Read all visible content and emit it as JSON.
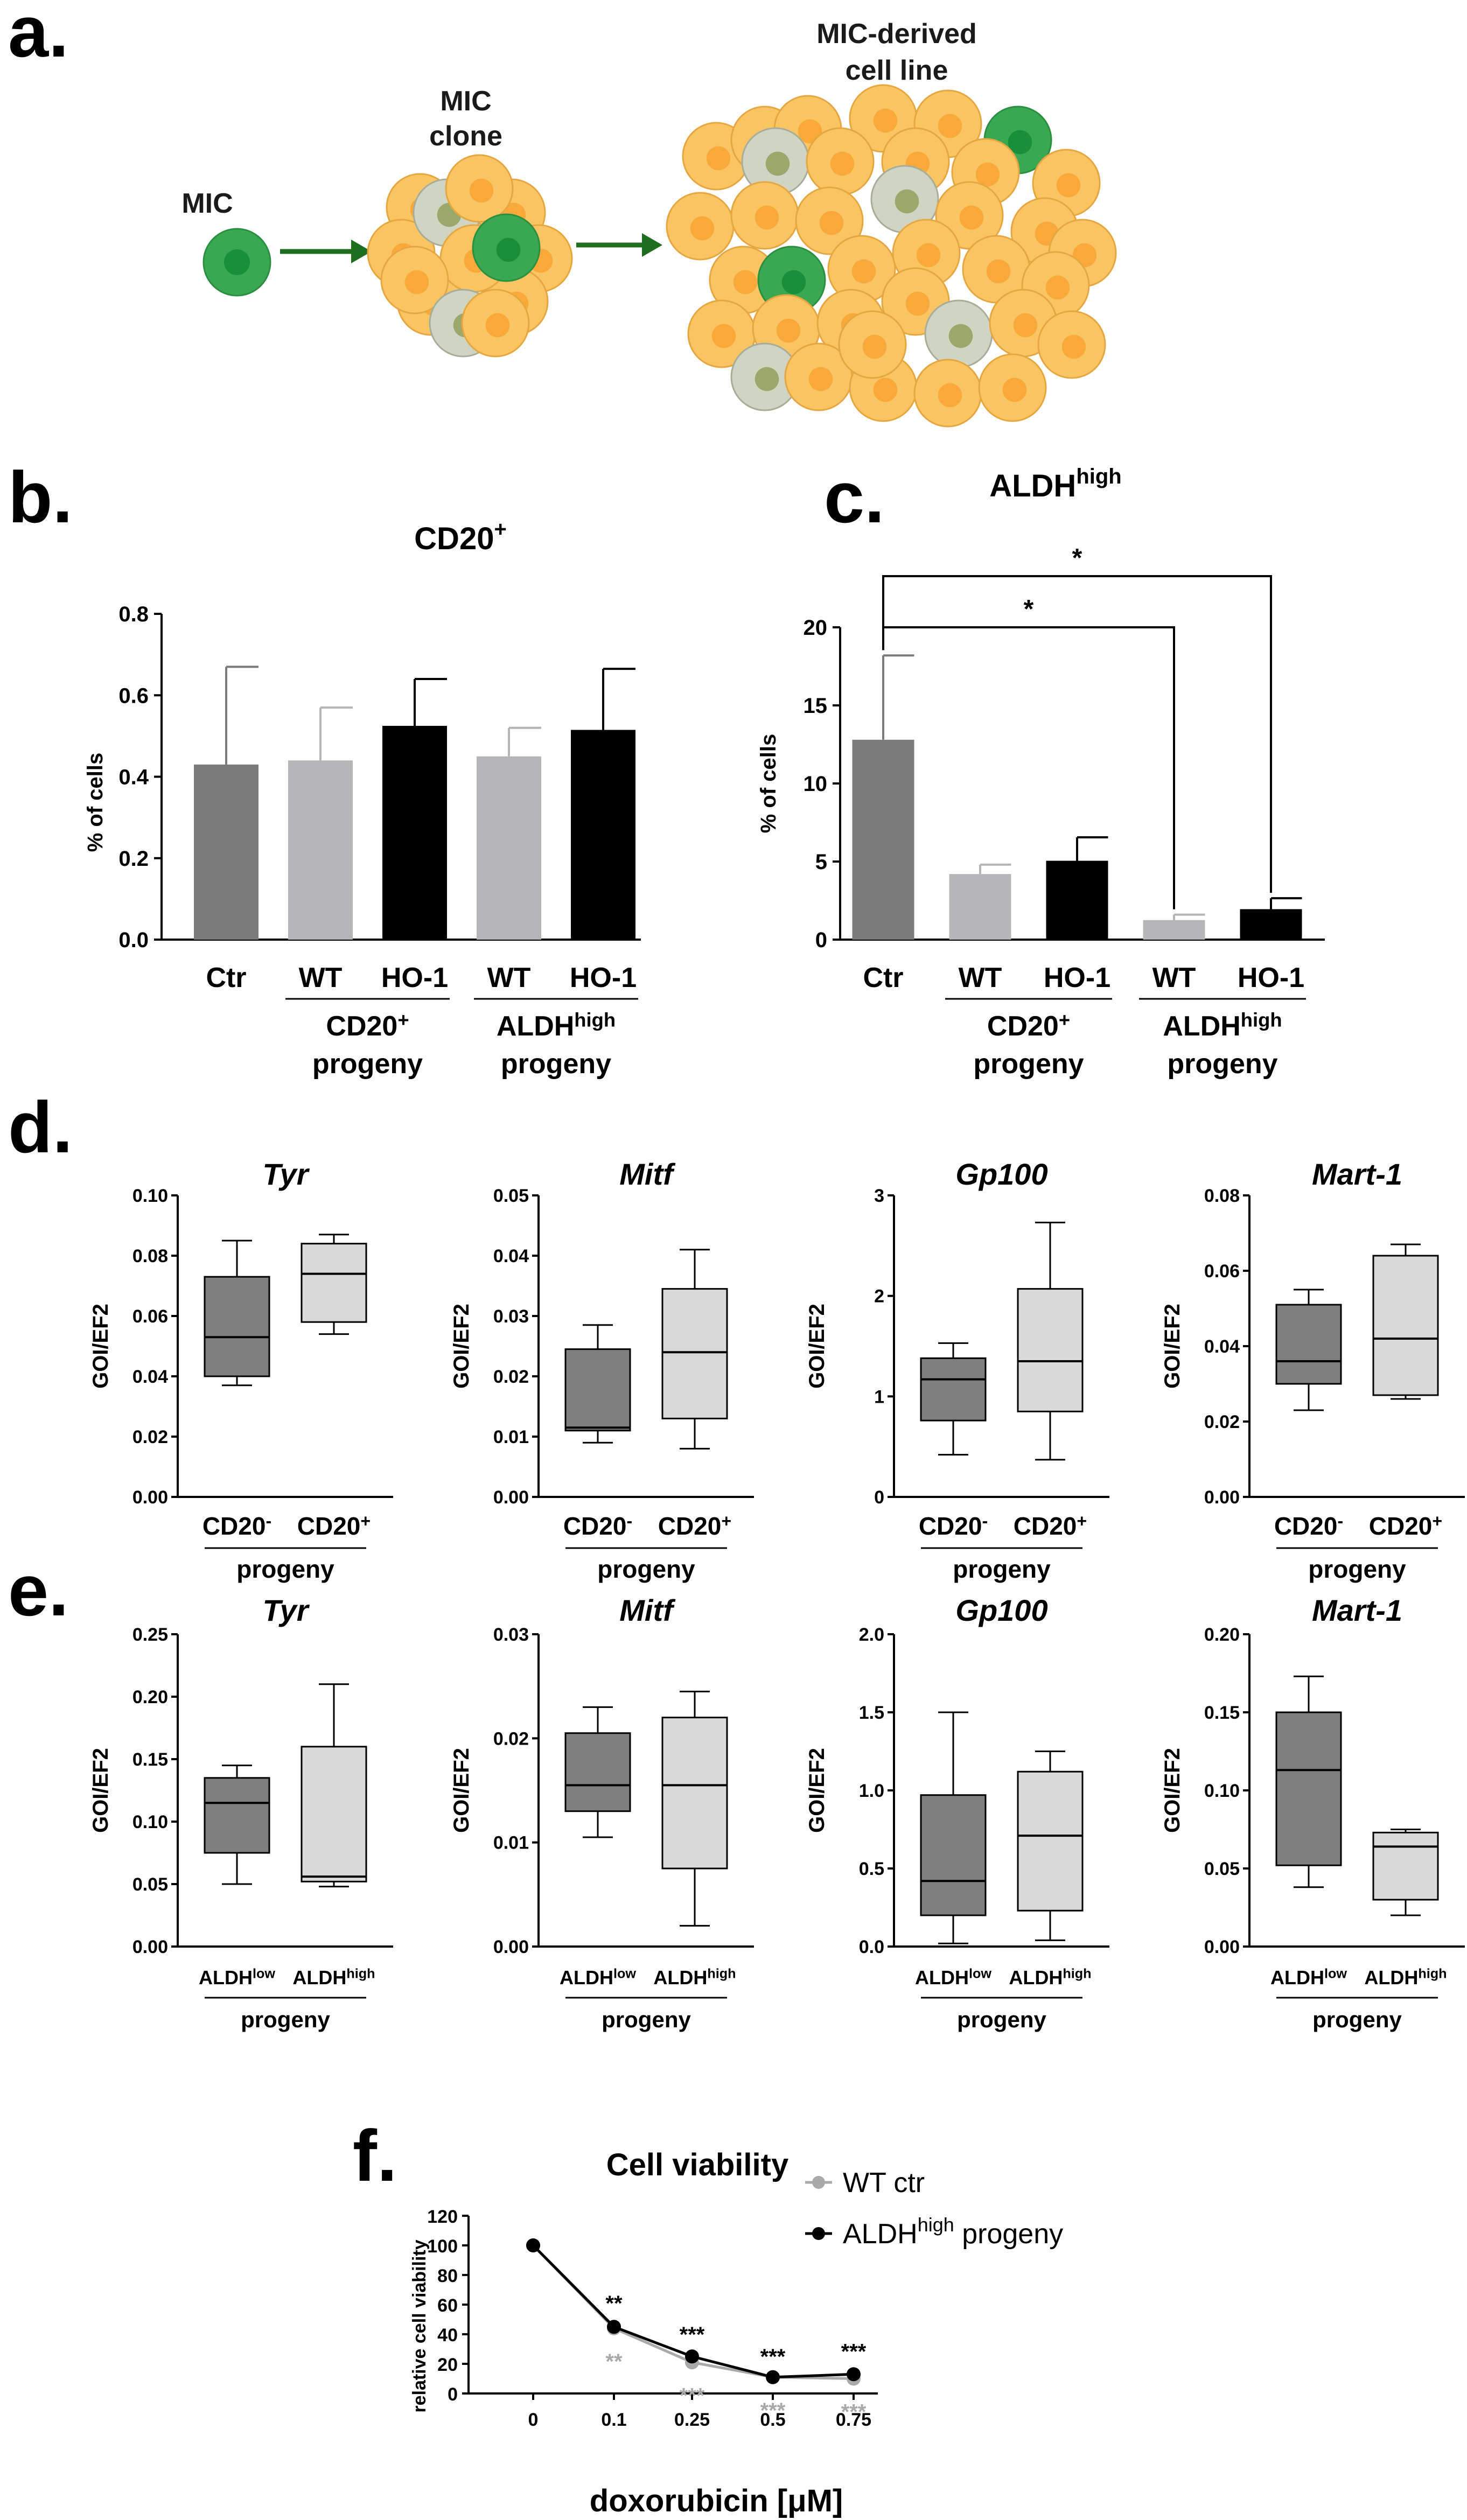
{
  "panel_labels": {
    "a": "a.",
    "b": "b.",
    "c": "c.",
    "d": "d.",
    "e": "e.",
    "f": "f."
  },
  "schematic": {
    "mic": "MIC",
    "clone_line1": "MIC",
    "clone_line2": "clone",
    "derived_line1": "MIC-derived",
    "derived_line2": "cell line"
  },
  "colors": {
    "dark_grey": "#7b7b7b",
    "light_grey": "#b5b5b7",
    "black": "#000000",
    "box_dark": "#7f7f7f",
    "box_light": "#d9d9d9",
    "green": "#3aa852",
    "yellow": "#f9c462",
    "orange": "#f9a93a"
  },
  "chart_data": [
    {
      "panel": "b",
      "type": "bar",
      "title": "CD20",
      "title_sup": "+",
      "ylabel": "% of cells",
      "ylim": [
        0,
        0.8
      ],
      "ticks": [
        "0.0",
        "0.2",
        "0.4",
        "0.6",
        "0.8"
      ],
      "categories": [
        "Ctr",
        "WT",
        "HO-1",
        "WT",
        "HO-1"
      ],
      "values": [
        0.43,
        0.44,
        0.525,
        0.45,
        0.515
      ],
      "errors": [
        0.24,
        0.13,
        0.115,
        0.07,
        0.15
      ],
      "groups": [
        {
          "line1": "CD20",
          "sup": "+",
          "line2": "progeny"
        },
        {
          "line1": "ALDH",
          "sup": "high",
          "line2": "progeny"
        }
      ]
    },
    {
      "panel": "c",
      "type": "bar",
      "title": "ALDH",
      "title_sup": "high",
      "ylabel": "% of cells",
      "ylim": [
        0,
        20
      ],
      "ticks": [
        "0",
        "5",
        "10",
        "15",
        "20"
      ],
      "categories": [
        "Ctr",
        "WT",
        "HO-1",
        "WT",
        "HO-1"
      ],
      "values": [
        12.8,
        4.2,
        5.05,
        1.25,
        1.95
      ],
      "errors": [
        5.4,
        0.6,
        1.5,
        0.35,
        0.7
      ],
      "significance": [
        "*",
        "*"
      ],
      "groups": [
        {
          "line1": "CD20",
          "sup": "+",
          "line2": "progeny"
        },
        {
          "line1": "ALDH",
          "sup": "high",
          "line2": "progeny"
        }
      ]
    },
    {
      "panel": "d",
      "type": "box",
      "ylabel": "GOI/EF2",
      "categories": [
        {
          "main": "CD20",
          "sup": "-"
        },
        {
          "main": "CD20",
          "sup": "+"
        }
      ],
      "group_label": "progeny",
      "plots": [
        {
          "title": "Tyr",
          "ylim": [
            0,
            0.1
          ],
          "ticks": [
            "0.00",
            "0.02",
            "0.04",
            "0.06",
            "0.08",
            "0.10"
          ],
          "boxes": [
            {
              "min": 0.037,
              "q1": 0.04,
              "median": 0.053,
              "q3": 0.073,
              "max": 0.085
            },
            {
              "min": 0.054,
              "q1": 0.058,
              "median": 0.074,
              "q3": 0.084,
              "max": 0.087
            }
          ]
        },
        {
          "title": "Mitf",
          "ylim": [
            0,
            0.05
          ],
          "ticks": [
            "0.00",
            "0.01",
            "0.02",
            "0.03",
            "0.04",
            "0.05"
          ],
          "boxes": [
            {
              "min": 0.009,
              "q1": 0.011,
              "median": 0.0115,
              "q3": 0.0245,
              "max": 0.0285
            },
            {
              "min": 0.008,
              "q1": 0.013,
              "median": 0.024,
              "q3": 0.0345,
              "max": 0.041
            }
          ]
        },
        {
          "title": "Gp100",
          "ylim": [
            0,
            3
          ],
          "ticks": [
            "0",
            "1",
            "2",
            "3"
          ],
          "boxes": [
            {
              "min": 0.42,
              "q1": 0.76,
              "median": 1.17,
              "q3": 1.38,
              "max": 1.53
            },
            {
              "min": 0.37,
              "q1": 0.85,
              "median": 1.35,
              "q3": 2.07,
              "max": 2.73
            }
          ]
        },
        {
          "title": "Mart-1",
          "ylim": [
            0,
            0.08
          ],
          "ticks": [
            "0.00",
            "0.02",
            "0.04",
            "0.06",
            "0.08"
          ],
          "boxes": [
            {
              "min": 0.023,
              "q1": 0.03,
              "median": 0.036,
              "q3": 0.051,
              "max": 0.055
            },
            {
              "min": 0.026,
              "q1": 0.027,
              "median": 0.042,
              "q3": 0.064,
              "max": 0.067
            }
          ]
        }
      ]
    },
    {
      "panel": "e",
      "type": "box",
      "ylabel": "GOI/EF2",
      "categories": [
        {
          "main": "ALDH",
          "sup": "low"
        },
        {
          "main": "ALDH",
          "sup": "high"
        }
      ],
      "group_label": "progeny",
      "plots": [
        {
          "title": "Tyr",
          "ylim": [
            0,
            0.25
          ],
          "ticks": [
            "0.00",
            "0.05",
            "0.10",
            "0.15",
            "0.20",
            "0.25"
          ],
          "boxes": [
            {
              "min": 0.05,
              "q1": 0.075,
              "median": 0.115,
              "q3": 0.135,
              "max": 0.145
            },
            {
              "min": 0.048,
              "q1": 0.052,
              "median": 0.056,
              "q3": 0.16,
              "max": 0.21
            }
          ]
        },
        {
          "title": "Mitf",
          "ylim": [
            0,
            0.03
          ],
          "ticks": [
            "0.00",
            "0.01",
            "0.02",
            "0.03"
          ],
          "boxes": [
            {
              "min": 0.0105,
              "q1": 0.013,
              "median": 0.0155,
              "q3": 0.0205,
              "max": 0.023
            },
            {
              "min": 0.002,
              "q1": 0.0075,
              "median": 0.0155,
              "q3": 0.022,
              "max": 0.0245
            }
          ]
        },
        {
          "title": "Gp100",
          "ylim": [
            0,
            2.0
          ],
          "ticks": [
            "0.0",
            "0.5",
            "1.0",
            "1.5",
            "2.0"
          ],
          "boxes": [
            {
              "min": 0.02,
              "q1": 0.2,
              "median": 0.42,
              "q3": 0.97,
              "max": 1.5
            },
            {
              "min": 0.04,
              "q1": 0.23,
              "median": 0.71,
              "q3": 1.12,
              "max": 1.25
            }
          ]
        },
        {
          "title": "Mart-1",
          "ylim": [
            0,
            0.2
          ],
          "ticks": [
            "0.00",
            "0.05",
            "0.10",
            "0.15",
            "0.20"
          ],
          "boxes": [
            {
              "min": 0.038,
              "q1": 0.052,
              "median": 0.113,
              "q3": 0.15,
              "max": 0.173
            },
            {
              "min": 0.02,
              "q1": 0.03,
              "median": 0.064,
              "q3": 0.073,
              "max": 0.075
            }
          ]
        }
      ]
    },
    {
      "panel": "f",
      "type": "line",
      "title": "Cell viability",
      "xlabel": "doxorubicin [μM]",
      "ylabel": "relative cell viability",
      "ylim": [
        0,
        120
      ],
      "yticks": [
        "0",
        "20",
        "40",
        "60",
        "80",
        "100",
        "120"
      ],
      "categories": [
        "0",
        "0.1",
        "0.25",
        "0.5",
        "0.75"
      ],
      "series": [
        {
          "name": "WT ctr",
          "color": "#a9a9a9",
          "values": [
            100,
            44,
            21,
            11,
            10
          ],
          "errors": [
            0,
            2,
            1.5,
            1,
            1
          ],
          "stars": [
            "",
            "**",
            "***",
            "***",
            "***"
          ]
        },
        {
          "name": "ALDH",
          "name_sup": "high",
          "name_suffix": " progeny",
          "color": "#000000",
          "values": [
            100,
            45,
            25,
            11,
            13
          ],
          "errors": [
            0,
            3,
            2,
            1,
            2.5
          ],
          "stars": [
            "",
            "**",
            "***",
            "***",
            "***"
          ]
        }
      ]
    }
  ]
}
